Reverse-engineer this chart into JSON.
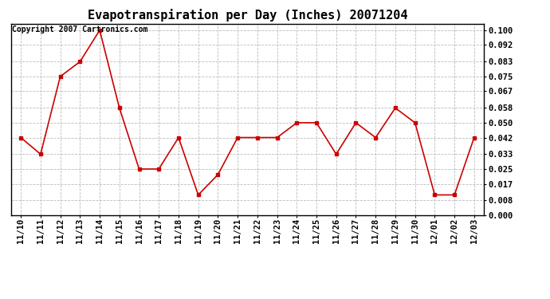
{
  "title": "Evapotranspiration per Day (Inches) 20071204",
  "copyright_text": "Copyright 2007 Cartronics.com",
  "x_labels": [
    "11/10",
    "11/11",
    "11/12",
    "11/13",
    "11/14",
    "11/15",
    "11/16",
    "11/17",
    "11/18",
    "11/19",
    "11/20",
    "11/21",
    "11/22",
    "11/23",
    "11/24",
    "11/25",
    "11/26",
    "11/27",
    "11/28",
    "11/29",
    "11/30",
    "12/01",
    "12/02",
    "12/03"
  ],
  "y_values": [
    0.042,
    0.033,
    0.075,
    0.083,
    0.1,
    0.058,
    0.025,
    0.025,
    0.042,
    0.011,
    0.022,
    0.042,
    0.042,
    0.042,
    0.05,
    0.05,
    0.033,
    0.05,
    0.042,
    0.058,
    0.05,
    0.011,
    0.011,
    0.042
  ],
  "line_color": "#cc0000",
  "marker": "s",
  "marker_size": 3,
  "background_color": "#ffffff",
  "grid_color": "#bbbbbb",
  "y_ticks": [
    0.0,
    0.008,
    0.017,
    0.025,
    0.033,
    0.042,
    0.05,
    0.058,
    0.067,
    0.075,
    0.083,
    0.092,
    0.1
  ],
  "ylim": [
    0.0,
    0.1034
  ],
  "title_fontsize": 11,
  "tick_fontsize": 7.5,
  "copyright_fontsize": 7
}
